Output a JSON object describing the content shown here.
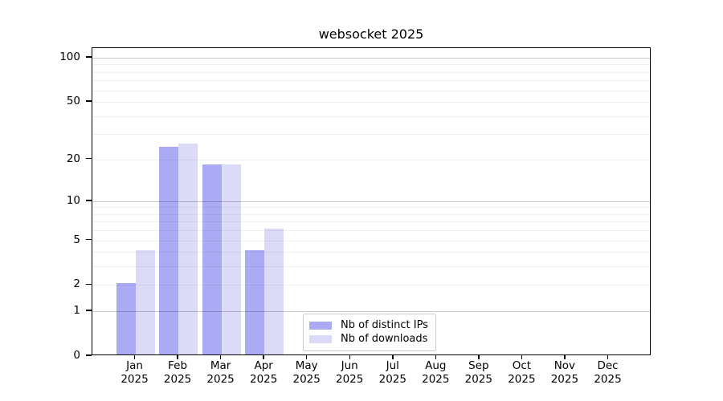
{
  "title": "websocket 2025",
  "legend": {
    "items": [
      {
        "label": "Nb of distinct IPs"
      },
      {
        "label": "Nb of downloads"
      }
    ]
  },
  "chart_data": {
    "type": "bar",
    "title": "websocket 2025",
    "categories": [
      "Jan 2025",
      "Feb 2025",
      "Mar 2025",
      "Apr 2025",
      "May 2025",
      "Jun 2025",
      "Jul 2025",
      "Aug 2025",
      "Sep 2025",
      "Oct 2025",
      "Nov 2025",
      "Dec 2025"
    ],
    "series": [
      {
        "name": "Nb of distinct IPs",
        "color": "#aaaaf5",
        "values": [
          2,
          24,
          18,
          4,
          0,
          0,
          0,
          0,
          0,
          0,
          0,
          0
        ]
      },
      {
        "name": "Nb of downloads",
        "color": "#dbdbf8",
        "values": [
          4,
          25,
          18,
          6,
          0,
          0,
          0,
          0,
          0,
          0,
          0,
          0
        ]
      }
    ],
    "yscale": "log1p",
    "yticks": [
      0,
      1,
      2,
      5,
      10,
      20,
      50,
      100
    ],
    "ylim": [
      0,
      115
    ],
    "xlabel": "",
    "ylabel": "",
    "grid": true,
    "legend_position": "lower-center-inside"
  },
  "colors": {
    "bar_distinct_ips": "#aaaaf5",
    "bar_downloads": "#dbdbf8",
    "grid_major": "#cccccc",
    "grid_minor": "#efefef",
    "spine": "#000000",
    "background": "#ffffff"
  }
}
